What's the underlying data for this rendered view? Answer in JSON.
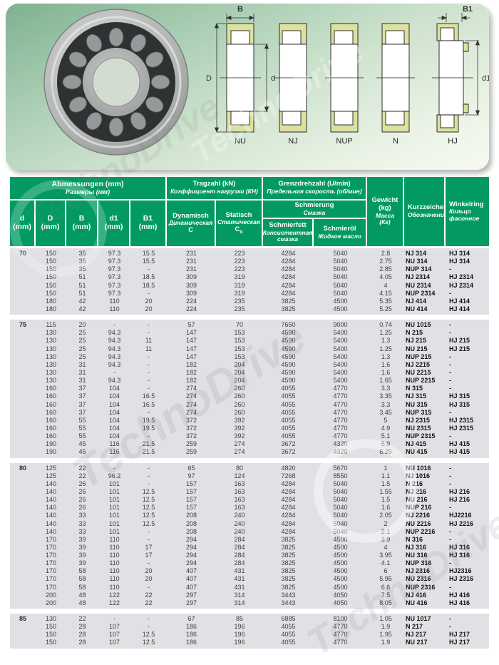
{
  "watermark": {
    "text": "TechnoDrive"
  },
  "photo": {
    "marking": "ISB"
  },
  "diagram": {
    "dims": {
      "B": "B",
      "B1": "B1",
      "D": "D",
      "d": "d",
      "d1": "d1"
    },
    "variants": [
      "NU",
      "NJ",
      "NUP",
      "N",
      "HJ"
    ]
  },
  "colors": {
    "header_green": "#029a62",
    "row_gray": "#e0e1e4",
    "khaki": "#dce1a0"
  },
  "table": {
    "header": {
      "abmessungen": {
        "de": "Abmessungen (mm)",
        "ru": "Размеры (мм)"
      },
      "tragzahl": {
        "de": "Tragzahl (kN)",
        "ru": "Коэффициент нагрузки (КН)"
      },
      "grenzdrehzahl": {
        "de": "Grenzdrehzahl (U/min)",
        "ru": "Предельная скорость (об/мин)"
      },
      "schmierung": {
        "de": "Schmierung",
        "ru": "Смазка"
      },
      "schmierfett": {
        "de": "Schmierfett",
        "ru": "Консистентная",
        "ru2": "смазка"
      },
      "schmieroel": {
        "de": "Schmieröl",
        "ru": "Жидкое масло"
      },
      "gewicht": {
        "de": "Gewicht",
        "de2": "(kg)",
        "ru": "Масса",
        "ru2": "(Кг)"
      },
      "kurzzeichen": {
        "de": "Kurzzeichen",
        "ru": "Обозначение"
      },
      "winkelring": {
        "de": "Winkelring",
        "ru": "Кольцо",
        "ru2": "фасонное"
      },
      "dynamisch": {
        "de": "Dynamisch",
        "ru": "Динамическая",
        "sym": "C"
      },
      "statisch": {
        "de": "Statisch",
        "ru": "Статическая",
        "sym": "C",
        "sub": "o"
      },
      "cols": {
        "d": "d",
        "D": "D",
        "B": "B",
        "d1": "d1",
        "b1": "B1",
        "mm": "(mm)"
      }
    },
    "groups": [
      {
        "d": "70",
        "rows": [
          [
            "150",
            "35",
            "97.3",
            "15.5",
            "231",
            "223",
            "4284",
            "5040",
            "2.8",
            "NJ 314",
            "HJ 314"
          ],
          [
            "150",
            "35",
            "97.3",
            "15.5",
            "231",
            "223",
            "4284",
            "5040",
            "2.75",
            "NU 314",
            "HJ 314"
          ],
          [
            "150",
            "35",
            "97.3",
            "-",
            "231",
            "223",
            "4284",
            "5040",
            "2.85",
            "NUP 314",
            "-"
          ],
          [
            "150",
            "51",
            "97.3",
            "18.5",
            "309",
            "319",
            "4284",
            "5040",
            "4.05",
            "NJ 2314",
            "HJ 2314"
          ],
          [
            "150",
            "51",
            "97.3",
            "18.5",
            "309",
            "319",
            "4284",
            "5040",
            "4",
            "NU 2314",
            "HJ 2314"
          ],
          [
            "150",
            "51",
            "97.3",
            "-",
            "309",
            "319",
            "4284",
            "5040",
            "4.15",
            "NUP 2314",
            "-"
          ],
          [
            "180",
            "42",
            "110",
            "20",
            "224",
            "235",
            "3825",
            "4500",
            "5.35",
            "NJ 414",
            "HJ 414"
          ],
          [
            "180",
            "42",
            "110",
            "20",
            "224",
            "235",
            "3825",
            "4500",
            "5.25",
            "NU 414",
            "HJ 414"
          ]
        ]
      },
      {
        "d": "75",
        "rows": [
          [
            "115",
            "20",
            "-",
            "-",
            "57",
            "70",
            "7650",
            "9000",
            "0.74",
            "NU 1015",
            "-"
          ],
          [
            "130",
            "25",
            "94.3",
            "-",
            "147",
            "153",
            "4590",
            "5400",
            "1.25",
            "N 215",
            "-"
          ],
          [
            "130",
            "25",
            "94.3",
            "11",
            "147",
            "153",
            "4590",
            "5400",
            "1.3",
            "NJ 215",
            "HJ 215"
          ],
          [
            "130",
            "25",
            "94.3",
            "11",
            "147",
            "153",
            "4590",
            "5400",
            "1.25",
            "NU 215",
            "HJ 215"
          ],
          [
            "130",
            "25",
            "94.3",
            "-",
            "147",
            "153",
            "4590",
            "5400",
            "1.3",
            "NUP 215",
            "-"
          ],
          [
            "130",
            "31",
            "94.3",
            "-",
            "182",
            "204",
            "4590",
            "5400",
            "1.6",
            "NJ 2215",
            "-"
          ],
          [
            "130",
            "31",
            "-",
            "-",
            "182",
            "204",
            "4590",
            "5400",
            "1.6",
            "NU 2215",
            "-"
          ],
          [
            "130",
            "31",
            "94.3",
            "-",
            "182",
            "204",
            "4590",
            "5400",
            "1.65",
            "NUP 2215",
            "-"
          ],
          [
            "160",
            "37",
            "104",
            "-",
            "274",
            "260",
            "4055",
            "4770",
            "3.3",
            "N 315",
            "-"
          ],
          [
            "160",
            "37",
            "104",
            "16.5",
            "274",
            "260",
            "4055",
            "4770",
            "3.35",
            "NJ 315",
            "HJ 315"
          ],
          [
            "160",
            "37",
            "104",
            "16.5",
            "274",
            "260",
            "4055",
            "4770",
            "3.3",
            "NU 315",
            "HJ 315"
          ],
          [
            "160",
            "37",
            "104",
            "-",
            "274",
            "260",
            "4055",
            "4770",
            "3.45",
            "NUP 315",
            "-"
          ],
          [
            "160",
            "55",
            "104",
            "19.5",
            "372",
            "392",
            "4055",
            "4770",
            "5",
            "NJ 2315",
            "HJ 2315"
          ],
          [
            "160",
            "55",
            "104",
            "19.5",
            "372",
            "392",
            "4055",
            "4770",
            "4.9",
            "NU 2315",
            "HJ 2315"
          ],
          [
            "160",
            "55",
            "104",
            "-",
            "372",
            "392",
            "4055",
            "4770",
            "5.1",
            "NUP 2315",
            "-"
          ],
          [
            "190",
            "45",
            "116",
            "21.5",
            "259",
            "274",
            "3672",
            "4320",
            "6.9",
            "NJ 415",
            "HJ 415"
          ],
          [
            "190",
            "45",
            "116",
            "21.5",
            "259",
            "274",
            "3672",
            "4320",
            "6.25",
            "NU 415",
            "HJ 415"
          ]
        ]
      },
      {
        "d": "80",
        "rows": [
          [
            "125",
            "22",
            "-",
            "-",
            "65",
            "80",
            "4820",
            "5670",
            "1",
            "NU 1016",
            "-"
          ],
          [
            "125",
            "22",
            "96.2",
            "-",
            "97",
            "124",
            "7268",
            "8550",
            "1.1",
            "NJ 1016",
            "-"
          ],
          [
            "140",
            "26",
            "101",
            "-",
            "157",
            "163",
            "4284",
            "5040",
            "1.5",
            "N 216",
            "-"
          ],
          [
            "140",
            "26",
            "101",
            "12.5",
            "157",
            "163",
            "4284",
            "5040",
            "1.55",
            "NJ 216",
            "HJ 216"
          ],
          [
            "140",
            "26",
            "101",
            "12.5",
            "157",
            "163",
            "4284",
            "5040",
            "1.5",
            "NU 216",
            "HJ 216"
          ],
          [
            "140",
            "26",
            "101",
            "12.5",
            "157",
            "163",
            "4284",
            "5040",
            "1.6",
            "NUP 216",
            "-"
          ],
          [
            "140",
            "33",
            "101",
            "12.5",
            "208",
            "240",
            "4284",
            "5040",
            "2.05",
            "NJ 2216",
            "HJ2216"
          ],
          [
            "140",
            "33",
            "101",
            "12.5",
            "208",
            "240",
            "4284",
            "5040",
            "2",
            "NU 2216",
            "HJ 2216"
          ],
          [
            "140",
            "33",
            "101",
            "-",
            "208",
            "240",
            "4284",
            "5040",
            "2.1",
            "NUP 2216",
            "-"
          ],
          [
            "170",
            "39",
            "110",
            "-",
            "294",
            "284",
            "3825",
            "4500",
            "3.9",
            "N 316",
            "-"
          ],
          [
            "170",
            "39",
            "110",
            "17",
            "294",
            "284",
            "3825",
            "4500",
            "4",
            "NJ 316",
            "HJ 316"
          ],
          [
            "170",
            "39",
            "110",
            "17",
            "294",
            "284",
            "3825",
            "4500",
            "3.95",
            "NU 316",
            "HJ 316"
          ],
          [
            "170",
            "39",
            "110",
            "-",
            "294",
            "284",
            "3825",
            "4500",
            "4.1",
            "NUP 316",
            "-"
          ],
          [
            "170",
            "58",
            "110",
            "20",
            "407",
            "431",
            "3825",
            "4500",
            "6",
            "NJ 2316",
            "HJ2316"
          ],
          [
            "170",
            "58",
            "110",
            "20",
            "407",
            "431",
            "3825",
            "4500",
            "5.95",
            "NU 2316",
            "HJ 2316"
          ],
          [
            "170",
            "58",
            "110",
            "-",
            "407",
            "431",
            "3825",
            "4500",
            "6.6",
            "NUP 2316",
            "-"
          ],
          [
            "200",
            "48",
            "122",
            "22",
            "297",
            "314",
            "3443",
            "4050",
            "7.5",
            "NJ 416",
            "HJ 416"
          ],
          [
            "200",
            "48",
            "122",
            "22",
            "297",
            "314",
            "3443",
            "4050",
            "8.05",
            "NU 416",
            "HJ 416"
          ]
        ]
      },
      {
        "d": "85",
        "rows": [
          [
            "130",
            "22",
            "-",
            "-",
            "67",
            "85",
            "6885",
            "8100",
            "1.05",
            "NU 1017",
            "-"
          ],
          [
            "150",
            "28",
            "107",
            "-",
            "186",
            "196",
            "4055",
            "4770",
            "1.9",
            "N 217",
            "-"
          ],
          [
            "150",
            "28",
            "107",
            "12.5",
            "186",
            "196",
            "4055",
            "4770",
            "1.95",
            "NJ 217",
            "HJ 217"
          ],
          [
            "150",
            "28",
            "107",
            "12.5",
            "186",
            "196",
            "4055",
            "4770",
            "1.9",
            "NU 217",
            "HJ 217"
          ]
        ]
      }
    ]
  }
}
